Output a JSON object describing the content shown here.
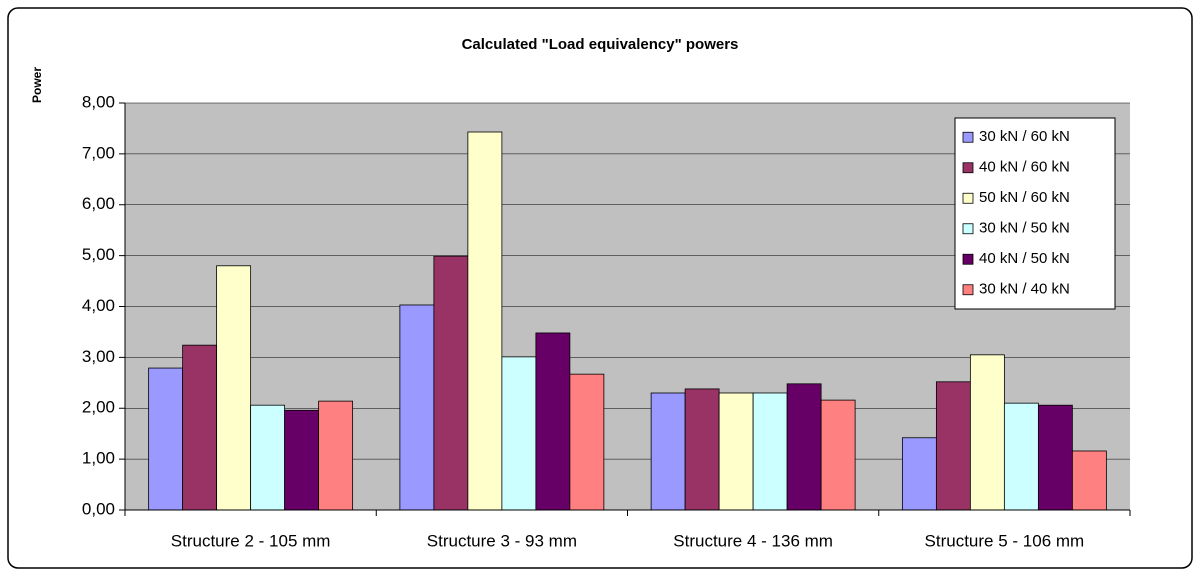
{
  "chart_data": {
    "type": "bar",
    "title": "Calculated \"Load equivalency\" powers",
    "y_label": "Power",
    "categories": [
      "Structure 2 - 105 mm",
      "Structure 3 - 93 mm",
      "Structure 4 - 136 mm",
      "Structure 5 - 106 mm"
    ],
    "series": [
      {
        "name": "30 kN / 60 kN",
        "color": "#9999ff",
        "values": [
          2.79,
          4.03,
          2.3,
          1.42
        ]
      },
      {
        "name": "40 kN / 60 kN",
        "color": "#993366",
        "values": [
          3.24,
          4.99,
          2.38,
          2.52
        ]
      },
      {
        "name": "50 kN / 60 kN",
        "color": "#ffffcc",
        "values": [
          4.8,
          7.43,
          2.3,
          3.05
        ]
      },
      {
        "name": "30 kN / 50 kN",
        "color": "#ccffff",
        "values": [
          2.06,
          3.01,
          2.3,
          2.1
        ]
      },
      {
        "name": "40 kN / 50 kN",
        "color": "#660066",
        "values": [
          1.96,
          3.48,
          2.48,
          2.06
        ]
      },
      {
        "name": "30 kN / 40 kN",
        "color": "#ff8080",
        "values": [
          2.14,
          2.67,
          2.16,
          1.16
        ]
      }
    ],
    "ylim": [
      0,
      8
    ],
    "yticks": [
      {
        "value": 0,
        "label": "0,00"
      },
      {
        "value": 1,
        "label": "1,00"
      },
      {
        "value": 2,
        "label": "2,00"
      },
      {
        "value": 3,
        "label": "3,00"
      },
      {
        "value": 4,
        "label": "4,00"
      },
      {
        "value": 5,
        "label": "5,00"
      },
      {
        "value": 6,
        "label": "6,00"
      },
      {
        "value": 7,
        "label": "7,00"
      },
      {
        "value": 8,
        "label": "8,00"
      }
    ],
    "grid": true,
    "legend": "upper right",
    "plot_background": "#c0c0c0"
  }
}
